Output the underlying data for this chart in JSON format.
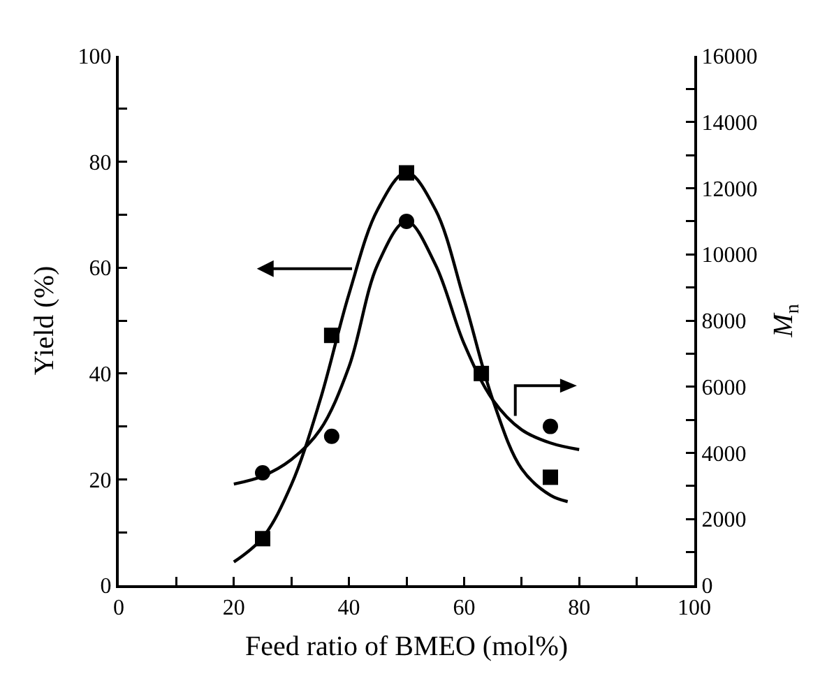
{
  "chart_data": {
    "type": "scatter",
    "xlabel": "Feed ratio of BMEO (mol%)",
    "ylabel": "Yield (%)",
    "y2label": "M$_{n}$",
    "xlim": [
      0,
      100
    ],
    "xticks": [
      0,
      {
        "value": 10,
        "label": null
      },
      20,
      {
        "value": 30,
        "label": null
      },
      40,
      {
        "value": 50,
        "label": null
      },
      60,
      {
        "value": 70,
        "label": null
      },
      80,
      {
        "value": 90,
        "label": null
      },
      100
    ],
    "ylim": [
      0,
      100
    ],
    "yticks": [
      0,
      {
        "value": 10,
        "label": null
      },
      20,
      {
        "value": 30,
        "label": null
      },
      40,
      {
        "value": 50,
        "label": null
      },
      60,
      {
        "value": 70,
        "label": null
      },
      80,
      {
        "value": 90,
        "label": null
      },
      100
    ],
    "y2lim": [
      0,
      16000
    ],
    "y2ticks": [
      0,
      {
        "value": 1000,
        "label": null
      },
      2000,
      {
        "value": 3000,
        "label": null
      },
      4000,
      {
        "value": 5000,
        "label": null
      },
      6000,
      {
        "value": 7000,
        "label": null
      },
      8000,
      {
        "value": 9000,
        "label": null
      },
      10000,
      {
        "value": 11000,
        "label": null
      },
      12000,
      {
        "value": 13000,
        "label": null
      },
      14000,
      {
        "value": 15000,
        "label": null
      },
      16000
    ],
    "grid": false,
    "series": [
      {
        "type": "scatter",
        "marker": "square",
        "color": "#000000",
        "x": [
          25,
          37,
          50,
          63,
          75
        ],
        "values": [
          8.8,
          47.2,
          77.9,
          40,
          20.4
        ]
      },
      {
        "type": "line",
        "marker": "none",
        "line_style": "solid",
        "color": "#000000",
        "x": [
          20,
          25,
          30,
          35,
          40,
          45,
          50,
          55,
          60,
          65,
          70,
          75,
          78
        ],
        "values": [
          4.4,
          9,
          19,
          35,
          55,
          71,
          78,
          71,
          54,
          35,
          22,
          17,
          15.8
        ]
      },
      {
        "type": "scatter",
        "marker": "circle",
        "axis": "y2",
        "color": "#000000",
        "x": [
          25,
          37,
          50,
          63,
          75
        ],
        "values": [
          3400,
          4500,
          11000,
          null,
          4800
        ]
      },
      {
        "type": "line",
        "marker": "none",
        "line_style": "solid",
        "axis": "y2",
        "color": "#000000",
        "x": [
          20,
          25,
          30,
          35,
          40,
          45,
          50,
          55,
          60,
          65,
          70,
          75,
          80
        ],
        "values": [
          3060,
          3300,
          3800,
          4700,
          6600,
          9700,
          11000,
          9700,
          7300,
          5600,
          4700,
          4300,
          4100
        ]
      }
    ]
  }
}
